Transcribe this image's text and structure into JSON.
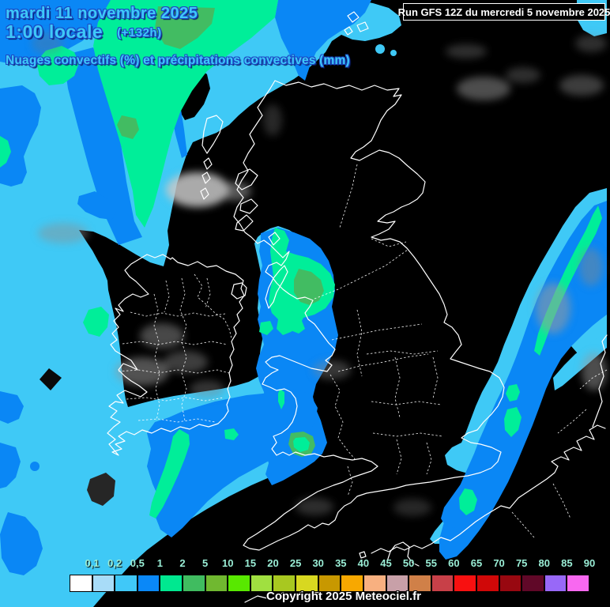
{
  "header": {
    "date": "mardi 11 novembre 2025",
    "time": "1:00 locale",
    "forecast_offset": "(+132h)",
    "subtitle": "Nuages convectifs (%) et précipitations convectives (mm)"
  },
  "run_info": "Run GFS 12Z du mercredi 5 novembre 2025",
  "copyright": "Copyright 2025 Meteociel.fr",
  "scale": {
    "unit_labels": [
      "0,1",
      "0,2",
      "0,5",
      "1",
      "2",
      "5",
      "10",
      "15",
      "20",
      "25",
      "30",
      "35",
      "40",
      "45",
      "50",
      "55",
      "60",
      "65",
      "70",
      "75",
      "80",
      "85",
      "90"
    ],
    "colors": [
      "#ffffff",
      "#a8dcf8",
      "#40c8f8",
      "#0a88f8",
      "#00e890",
      "#40bc60",
      "#70b830",
      "#58e800",
      "#a0e040",
      "#a8c820",
      "#d8d820",
      "#c89800",
      "#f8a800",
      "#f8b080",
      "#c8a0a8",
      "#d08048",
      "#c84048",
      "#f81010",
      "#d00808",
      "#980810",
      "#600828",
      "#9868f8",
      "#f868f0"
    ]
  },
  "map": {
    "colors": {
      "background": "#000000",
      "coastline": "#ffffff",
      "cloud_gray": "#aaaaaa",
      "precip_05": "#3fc9f6",
      "precip_1": "#0a87f5",
      "precip_2": "#00ee99",
      "precip_5": "#42bc62"
    }
  }
}
